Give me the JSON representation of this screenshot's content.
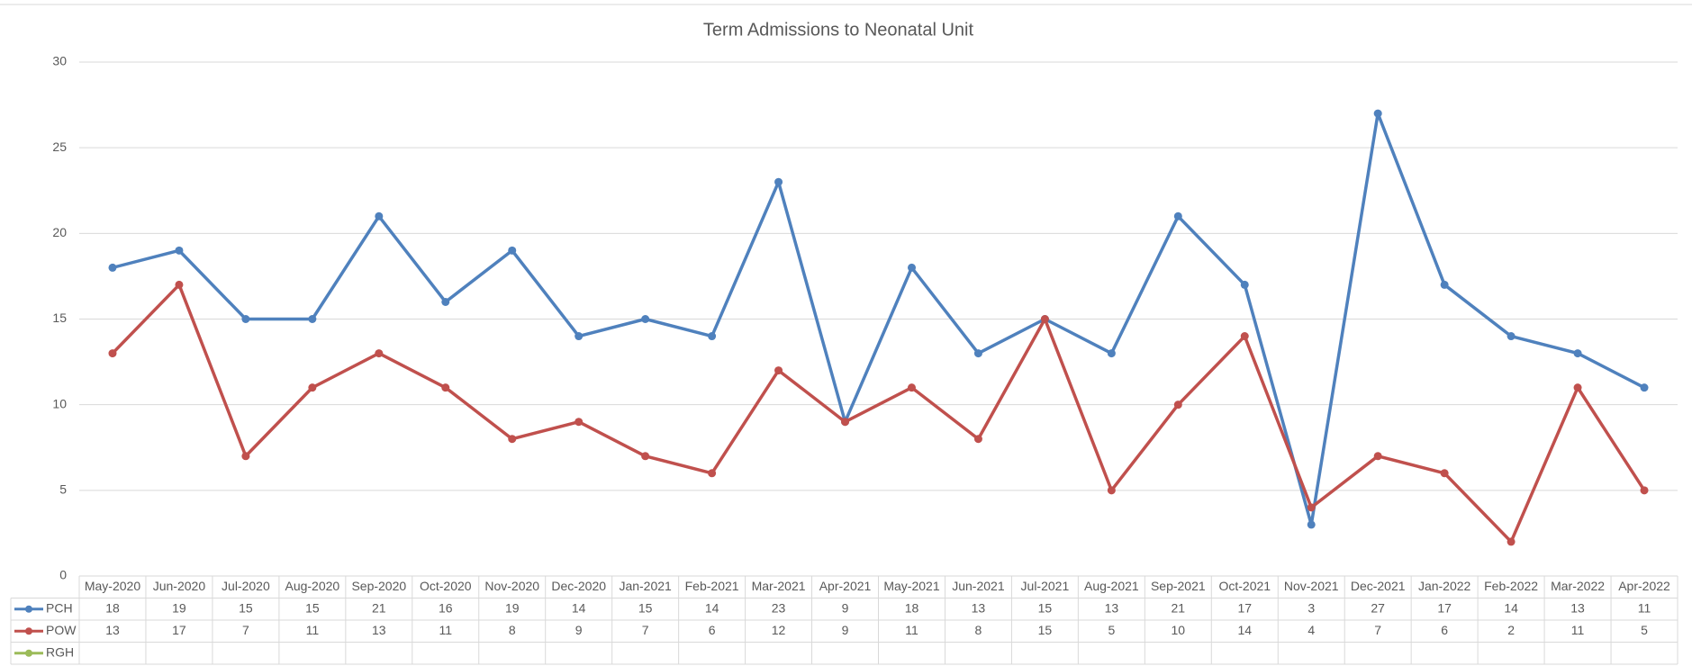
{
  "chart_data": {
    "type": "line",
    "title": "Term Admissions to Neonatal Unit",
    "categories": [
      "May-2020",
      "Jun-2020",
      "Jul-2020",
      "Aug-2020",
      "Sep-2020",
      "Oct-2020",
      "Nov-2020",
      "Dec-2020",
      "Jan-2021",
      "Feb-2021",
      "Mar-2021",
      "Apr-2021",
      "May-2021",
      "Jun-2021",
      "Jul-2021",
      "Aug-2021",
      "Sep-2021",
      "Oct-2021",
      "Nov-2021",
      "Dec-2021",
      "Jan-2022",
      "Feb-2022",
      "Mar-2022",
      "Apr-2022"
    ],
    "series": [
      {
        "name": "PCH",
        "color": "#4f81bd",
        "values": [
          18,
          19,
          15,
          15,
          21,
          16,
          19,
          14,
          15,
          14,
          23,
          9,
          18,
          13,
          15,
          13,
          21,
          17,
          3,
          27,
          17,
          14,
          13,
          11
        ]
      },
      {
        "name": "POW",
        "color": "#c0504d",
        "values": [
          13,
          17,
          7,
          11,
          13,
          11,
          8,
          9,
          7,
          6,
          12,
          9,
          11,
          8,
          15,
          5,
          10,
          14,
          4,
          7,
          6,
          2,
          11,
          5
        ]
      },
      {
        "name": "RGH",
        "color": "#9bbb59",
        "values": [
          null,
          null,
          null,
          null,
          null,
          null,
          null,
          null,
          null,
          null,
          null,
          null,
          null,
          null,
          null,
          null,
          null,
          null,
          null,
          null,
          null,
          null,
          null,
          null
        ]
      }
    ],
    "ylim": [
      0,
      30
    ],
    "yticks": [
      0,
      5,
      10,
      15,
      20,
      25,
      30
    ],
    "grid": true,
    "data_table": true
  }
}
